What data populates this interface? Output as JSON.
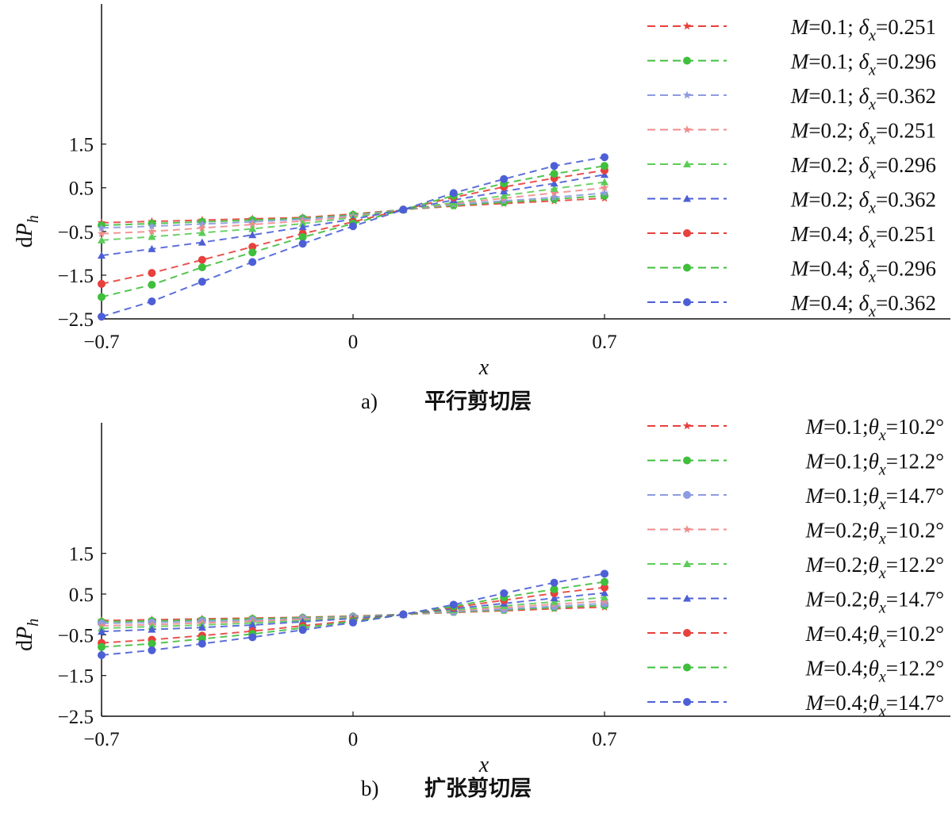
{
  "chart_data": [
    {
      "type": "line",
      "caption_label": "a)",
      "caption_title": "平行剪切层",
      "xlabel": "x",
      "ylabel": "dP_h",
      "xlim": [
        -0.7,
        0.7
      ],
      "ylim": [
        -2.5,
        1.5
      ],
      "xticks": [
        "-0.7",
        "0",
        "0.7"
      ],
      "yticks": [
        "1.5",
        "0.5",
        "-0.5",
        "-1.5",
        "-2.5"
      ],
      "x": [
        -0.7,
        -0.56,
        -0.42,
        -0.28,
        -0.14,
        0.0,
        0.14,
        0.28,
        0.42,
        0.56,
        0.7
      ],
      "legend_position": "right",
      "series": [
        {
          "name": "M=0.1; δx=0.251",
          "label_main": "M",
          "label_rest": "=0.1; ",
          "param_sym": "δ",
          "param_sub": "x",
          "param_val": "=0.251",
          "color": "#e8403c",
          "marker": "star",
          "values": [
            -0.3,
            -0.27,
            -0.24,
            -0.21,
            -0.18,
            -0.1,
            0.0,
            0.08,
            0.14,
            0.2,
            0.26
          ]
        },
        {
          "name": "M=0.1; δx=0.296",
          "label_main": "M",
          "label_rest": "=0.1; ",
          "param_sym": "δ",
          "param_sub": "x",
          "param_val": "=0.296",
          "color": "#3fbf3c",
          "marker": "dot",
          "values": [
            -0.36,
            -0.32,
            -0.28,
            -0.24,
            -0.2,
            -0.12,
            0.0,
            0.1,
            0.17,
            0.24,
            0.32
          ]
        },
        {
          "name": "M=0.1; δx=0.362",
          "label_main": "M",
          "label_rest": "=0.1; ",
          "param_sym": "δ",
          "param_sub": "x",
          "param_val": "=0.362",
          "color": "#8d9be0",
          "marker": "star",
          "values": [
            -0.42,
            -0.38,
            -0.33,
            -0.28,
            -0.22,
            -0.14,
            0.0,
            0.12,
            0.2,
            0.28,
            0.38
          ]
        },
        {
          "name": "M=0.2; δx=0.251",
          "label_main": "M",
          "label_rest": "=0.2; ",
          "param_sym": "δ",
          "param_sub": "x",
          "param_val": "=0.251",
          "color": "#f08c8c",
          "marker": "star",
          "values": [
            -0.55,
            -0.5,
            -0.42,
            -0.34,
            -0.26,
            -0.16,
            0.0,
            0.14,
            0.26,
            0.38,
            0.5
          ]
        },
        {
          "name": "M=0.2; δx=0.296",
          "label_main": "M",
          "label_rest": "=0.2; ",
          "param_sym": "δ",
          "param_sub": "x",
          "param_val": "=0.296",
          "color": "#5ccc58",
          "marker": "tri",
          "values": [
            -0.7,
            -0.62,
            -0.53,
            -0.44,
            -0.32,
            -0.18,
            0.0,
            0.16,
            0.32,
            0.48,
            0.63
          ]
        },
        {
          "name": "M=0.2; δx=0.362",
          "label_main": "M",
          "label_rest": "=0.2; ",
          "param_sym": "δ",
          "param_sub": "x",
          "param_val": "=0.362",
          "color": "#4d5fd6",
          "marker": "tri",
          "values": [
            -1.05,
            -0.9,
            -0.75,
            -0.58,
            -0.4,
            -0.22,
            0.0,
            0.22,
            0.42,
            0.6,
            0.8
          ]
        },
        {
          "name": "M=0.4; δx=0.251",
          "label_main": "M",
          "label_rest": "=0.4; ",
          "param_sym": "δ",
          "param_sub": "x",
          "param_val": "=0.251",
          "color": "#e8403c",
          "marker": "dot",
          "values": [
            -1.7,
            -1.45,
            -1.15,
            -0.85,
            -0.55,
            -0.28,
            0.0,
            0.28,
            0.52,
            0.72,
            0.9
          ]
        },
        {
          "name": "M=0.4; δx=0.296",
          "label_main": "M",
          "label_rest": "=0.4; ",
          "param_sym": "δ",
          "param_sub": "x",
          "param_val": "=0.296",
          "color": "#3fbf3c",
          "marker": "dot",
          "values": [
            -2.0,
            -1.72,
            -1.32,
            -0.98,
            -0.63,
            -0.32,
            0.0,
            0.32,
            0.6,
            0.82,
            1.0
          ]
        },
        {
          "name": "M=0.4; δx=0.362",
          "label_main": "M",
          "label_rest": "=0.4; ",
          "param_sym": "δ",
          "param_sub": "x",
          "param_val": "=0.362",
          "color": "#4d5fd6",
          "marker": "dot",
          "values": [
            -2.45,
            -2.1,
            -1.65,
            -1.2,
            -0.78,
            -0.38,
            0.0,
            0.38,
            0.7,
            1.0,
            1.2
          ]
        }
      ]
    },
    {
      "type": "line",
      "caption_label": "b)",
      "caption_title": "扩张剪切层",
      "xlabel": "x",
      "ylabel": "dP_h",
      "xlim": [
        -0.7,
        0.7
      ],
      "ylim": [
        -2.5,
        1.5
      ],
      "xticks": [
        "-0.7",
        "0",
        "0.7"
      ],
      "yticks": [
        "1.5",
        "0.5",
        "-0.5",
        "-1.5",
        "-2.5"
      ],
      "x": [
        -0.7,
        -0.56,
        -0.42,
        -0.28,
        -0.14,
        0.0,
        0.14,
        0.28,
        0.42,
        0.56,
        0.7
      ],
      "legend_position": "right",
      "series": [
        {
          "name": "M=0.1;θx=10.2°",
          "label_main": "M",
          "label_rest": "=0.1;",
          "param_sym": "θ",
          "param_sub": "x",
          "param_val": "=10.2°",
          "color": "#e8403c",
          "marker": "star",
          "values": [
            -0.15,
            -0.13,
            -0.11,
            -0.09,
            -0.07,
            -0.04,
            0.0,
            0.05,
            0.09,
            0.14,
            0.18
          ]
        },
        {
          "name": "M=0.1;θx=12.2°",
          "label_main": "M",
          "label_rest": "=0.1;",
          "param_sym": "θ",
          "param_sub": "x",
          "param_val": "=12.2°",
          "color": "#3fbf3c",
          "marker": "dot",
          "values": [
            -0.18,
            -0.16,
            -0.14,
            -0.11,
            -0.08,
            -0.05,
            0.0,
            0.06,
            0.11,
            0.17,
            0.22
          ]
        },
        {
          "name": "M=0.1;θx=14.7°",
          "label_main": "M",
          "label_rest": "=0.1;",
          "param_sym": "θ",
          "param_sub": "x",
          "param_val": "=14.7°",
          "color": "#8d9be0",
          "marker": "dot",
          "values": [
            -0.22,
            -0.2,
            -0.17,
            -0.14,
            -0.1,
            -0.06,
            0.0,
            0.07,
            0.13,
            0.2,
            0.27
          ]
        },
        {
          "name": "M=0.2;θx=10.2°",
          "label_main": "M",
          "label_rest": "=0.2;",
          "param_sym": "θ",
          "param_sub": "x",
          "param_val": "=10.2°",
          "color": "#f08c8c",
          "marker": "star",
          "values": [
            -0.28,
            -0.25,
            -0.21,
            -0.17,
            -0.12,
            -0.07,
            0.0,
            0.09,
            0.17,
            0.25,
            0.33
          ]
        },
        {
          "name": "M=0.2;θx=12.2°",
          "label_main": "M",
          "label_rest": "=0.2;",
          "param_sym": "θ",
          "param_sub": "x",
          "param_val": "=12.2°",
          "color": "#5ccc58",
          "marker": "tri",
          "values": [
            -0.34,
            -0.3,
            -0.26,
            -0.21,
            -0.15,
            -0.08,
            0.0,
            0.11,
            0.21,
            0.31,
            0.42
          ]
        },
        {
          "name": "M=0.2;θx=14.7°",
          "label_main": "M",
          "label_rest": "=0.2;",
          "param_sym": "θ",
          "param_sub": "x",
          "param_val": "=14.7°",
          "color": "#4d5fd6",
          "marker": "tri",
          "values": [
            -0.42,
            -0.37,
            -0.32,
            -0.26,
            -0.18,
            -0.1,
            0.0,
            0.14,
            0.27,
            0.4,
            0.53
          ]
        },
        {
          "name": "M=0.4;θx=10.2°",
          "label_main": "M",
          "label_rest": "=0.4;",
          "param_sym": "θ",
          "param_sub": "x",
          "param_val": "=10.2°",
          "color": "#e8403c",
          "marker": "dot",
          "values": [
            -0.7,
            -0.62,
            -0.52,
            -0.41,
            -0.28,
            -0.15,
            0.0,
            0.17,
            0.35,
            0.52,
            0.66
          ]
        },
        {
          "name": "M=0.4;θx=12.2°",
          "label_main": "M",
          "label_rest": "=0.4;",
          "param_sym": "θ",
          "param_sub": "x",
          "param_val": "=12.2°",
          "color": "#3fbf3c",
          "marker": "dot",
          "values": [
            -0.8,
            -0.72,
            -0.6,
            -0.48,
            -0.33,
            -0.17,
            0.0,
            0.2,
            0.42,
            0.62,
            0.8
          ]
        },
        {
          "name": "M=0.4;θx=14.7°",
          "label_main": "M",
          "label_rest": "=0.4;",
          "param_sym": "θ",
          "param_sub": "x",
          "param_val": "=14.7°",
          "color": "#4d5fd6",
          "marker": "dot",
          "values": [
            -1.0,
            -0.88,
            -0.72,
            -0.56,
            -0.38,
            -0.2,
            0.0,
            0.24,
            0.52,
            0.78,
            1.0
          ]
        }
      ]
    }
  ]
}
